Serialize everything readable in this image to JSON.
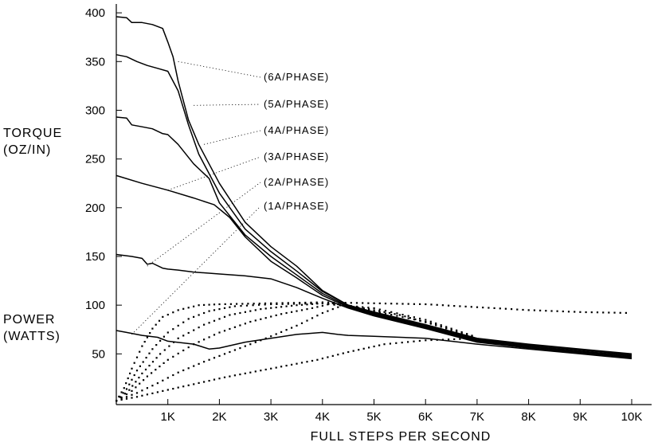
{
  "chart_data": {
    "type": "line",
    "ylabel_lines": [
      "TORQUE",
      "(OZ/IN)"
    ],
    "ylabel2_lines": [
      "POWER",
      "(WATTS)"
    ],
    "xlabel": "FULL STEPS PER SECOND",
    "x_ticks": [
      {
        "value": 1000,
        "label": "1K"
      },
      {
        "value": 2000,
        "label": "2K"
      },
      {
        "value": 3000,
        "label": "3K"
      },
      {
        "value": 4000,
        "label": "4K"
      },
      {
        "value": 5000,
        "label": "5K"
      },
      {
        "value": 6000,
        "label": "6K"
      },
      {
        "value": 7000,
        "label": "7K"
      },
      {
        "value": 8000,
        "label": "8K"
      },
      {
        "value": 9000,
        "label": "9K"
      },
      {
        "value": 10000,
        "label": "10K"
      }
    ],
    "y_ticks": [
      {
        "value": 50,
        "label": "50"
      },
      {
        "value": 100,
        "label": "100"
      },
      {
        "value": 150,
        "label": "150"
      },
      {
        "value": 200,
        "label": "200"
      },
      {
        "value": 250,
        "label": "250"
      },
      {
        "value": 300,
        "label": "300"
      },
      {
        "value": 350,
        "label": "350"
      },
      {
        "value": 400,
        "label": "400"
      }
    ],
    "xlim": [
      0,
      10400
    ],
    "ylim": [
      0,
      410
    ],
    "grid": false,
    "torque_series": [
      {
        "name": "(6A/PHASE)",
        "points": [
          [
            0,
            396
          ],
          [
            200,
            395
          ],
          [
            300,
            390
          ],
          [
            500,
            390
          ],
          [
            700,
            388
          ],
          [
            900,
            384
          ],
          [
            1000,
            370
          ],
          [
            1100,
            355
          ],
          [
            1200,
            330
          ],
          [
            1400,
            290
          ],
          [
            1600,
            265
          ],
          [
            2000,
            225
          ],
          [
            2500,
            185
          ],
          [
            3000,
            160
          ],
          [
            3500,
            140
          ],
          [
            4000,
            115
          ],
          [
            4500,
            100
          ],
          [
            5000,
            93
          ],
          [
            6000,
            80
          ],
          [
            7000,
            66
          ],
          [
            8000,
            60
          ],
          [
            9000,
            55
          ],
          [
            10000,
            50
          ]
        ]
      },
      {
        "name": "(5A/PHASE)",
        "points": [
          [
            0,
            357
          ],
          [
            200,
            355
          ],
          [
            400,
            350
          ],
          [
            600,
            346
          ],
          [
            800,
            343
          ],
          [
            1000,
            340
          ],
          [
            1200,
            320
          ],
          [
            1400,
            285
          ],
          [
            1600,
            255
          ],
          [
            2000,
            215
          ],
          [
            2500,
            178
          ],
          [
            3000,
            155
          ],
          [
            3500,
            135
          ],
          [
            4000,
            114
          ],
          [
            4500,
            100
          ],
          [
            5000,
            92
          ],
          [
            6000,
            79
          ],
          [
            7000,
            65
          ],
          [
            8000,
            59
          ],
          [
            9000,
            54
          ],
          [
            10000,
            49
          ]
        ]
      },
      {
        "name": "(4A/PHASE)",
        "points": [
          [
            0,
            293
          ],
          [
            200,
            292
          ],
          [
            300,
            285
          ],
          [
            500,
            283
          ],
          [
            700,
            281
          ],
          [
            900,
            276
          ],
          [
            1000,
            275
          ],
          [
            1200,
            265
          ],
          [
            1500,
            245
          ],
          [
            1800,
            230
          ],
          [
            2000,
            205
          ],
          [
            2500,
            172
          ],
          [
            3000,
            150
          ],
          [
            3500,
            131
          ],
          [
            4000,
            112
          ],
          [
            4500,
            99
          ],
          [
            5000,
            91
          ],
          [
            6000,
            78
          ],
          [
            7000,
            64
          ],
          [
            8000,
            58
          ],
          [
            9000,
            53
          ],
          [
            10000,
            48
          ]
        ]
      },
      {
        "name": "(3A/PHASE)",
        "points": [
          [
            0,
            233
          ],
          [
            500,
            225
          ],
          [
            1000,
            218
          ],
          [
            1500,
            210
          ],
          [
            1900,
            203
          ],
          [
            2200,
            190
          ],
          [
            2500,
            170
          ],
          [
            3000,
            145
          ],
          [
            3500,
            128
          ],
          [
            4000,
            110
          ],
          [
            4500,
            98
          ],
          [
            5000,
            90
          ],
          [
            6000,
            77
          ],
          [
            7000,
            63
          ],
          [
            8000,
            57
          ],
          [
            9000,
            52
          ],
          [
            10000,
            47
          ]
        ]
      },
      {
        "name": "(2A/PHASE)",
        "points": [
          [
            0,
            152
          ],
          [
            300,
            150
          ],
          [
            500,
            148
          ],
          [
            600,
            142
          ],
          [
            700,
            143
          ],
          [
            900,
            138
          ],
          [
            1000,
            137
          ],
          [
            1200,
            136
          ],
          [
            1500,
            134
          ],
          [
            2000,
            132
          ],
          [
            2500,
            130
          ],
          [
            3000,
            127
          ],
          [
            3500,
            118
          ],
          [
            4000,
            107
          ],
          [
            4500,
            97
          ],
          [
            5000,
            89
          ],
          [
            6000,
            76
          ],
          [
            7000,
            62
          ],
          [
            8000,
            56
          ],
          [
            9000,
            51
          ],
          [
            10000,
            46
          ]
        ]
      },
      {
        "name": "(1A/PHASE)",
        "points": [
          [
            0,
            74
          ],
          [
            200,
            72
          ],
          [
            500,
            69
          ],
          [
            800,
            67
          ],
          [
            1000,
            63
          ],
          [
            1500,
            60
          ],
          [
            1800,
            55
          ],
          [
            2000,
            56
          ],
          [
            2500,
            62
          ],
          [
            3000,
            66
          ],
          [
            3500,
            70
          ],
          [
            4000,
            72
          ],
          [
            4300,
            70
          ],
          [
            4500,
            69
          ],
          [
            5000,
            68
          ],
          [
            6000,
            66
          ],
          [
            7000,
            60
          ],
          [
            8000,
            55
          ],
          [
            9000,
            50
          ],
          [
            10000,
            45
          ]
        ]
      }
    ],
    "power_series": [
      {
        "name": "(6A/PHASE)",
        "points": [
          [
            0,
            2
          ],
          [
            150,
            15
          ],
          [
            300,
            35
          ],
          [
            500,
            58
          ],
          [
            700,
            76
          ],
          [
            900,
            88
          ],
          [
            1200,
            95
          ],
          [
            1600,
            100
          ],
          [
            2000,
            101
          ],
          [
            3000,
            102
          ],
          [
            4000,
            103
          ],
          [
            5000,
            102
          ],
          [
            6000,
            101
          ],
          [
            7000,
            98
          ],
          [
            8000,
            95
          ],
          [
            9000,
            93
          ],
          [
            10000,
            92
          ]
        ]
      },
      {
        "name": "(5A/PHASE)",
        "points": [
          [
            0,
            2
          ],
          [
            200,
            14
          ],
          [
            400,
            33
          ],
          [
            700,
            55
          ],
          [
            1000,
            72
          ],
          [
            1400,
            86
          ],
          [
            1800,
            94
          ],
          [
            2300,
            99
          ],
          [
            3000,
            101
          ],
          [
            4000,
            102
          ],
          [
            5000,
            97
          ],
          [
            6000,
            85
          ],
          [
            7000,
            67
          ]
        ]
      },
      {
        "name": "(4A/PHASE)",
        "points": [
          [
            0,
            2
          ],
          [
            250,
            13
          ],
          [
            500,
            30
          ],
          [
            850,
            50
          ],
          [
            1200,
            66
          ],
          [
            1700,
            80
          ],
          [
            2200,
            90
          ],
          [
            2800,
            96
          ],
          [
            3500,
            100
          ],
          [
            4000,
            102
          ],
          [
            4800,
            97
          ],
          [
            5500,
            90
          ],
          [
            6500,
            75
          ],
          [
            7000,
            67
          ]
        ]
      },
      {
        "name": "(3A/PHASE)",
        "points": [
          [
            0,
            2
          ],
          [
            300,
            12
          ],
          [
            600,
            27
          ],
          [
            1000,
            44
          ],
          [
            1500,
            60
          ],
          [
            2000,
            72
          ],
          [
            2600,
            83
          ],
          [
            3200,
            91
          ],
          [
            3800,
            97
          ],
          [
            4200,
            102
          ],
          [
            5000,
            94
          ],
          [
            6000,
            83
          ],
          [
            7000,
            66
          ]
        ]
      },
      {
        "name": "(2A/PHASE)",
        "points": [
          [
            0,
            2
          ],
          [
            400,
            10
          ],
          [
            800,
            20
          ],
          [
            1200,
            31
          ],
          [
            1700,
            42
          ],
          [
            2300,
            54
          ],
          [
            2900,
            66
          ],
          [
            3500,
            79
          ],
          [
            4000,
            92
          ],
          [
            4400,
            100
          ],
          [
            5000,
            92
          ],
          [
            6000,
            78
          ],
          [
            7000,
            64
          ]
        ]
      },
      {
        "name": "(1A/PHASE)",
        "points": [
          [
            0,
            2
          ],
          [
            400,
            6
          ],
          [
            900,
            12
          ],
          [
            1500,
            19
          ],
          [
            2100,
            26
          ],
          [
            2700,
            32
          ],
          [
            3300,
            38
          ],
          [
            3900,
            44
          ],
          [
            4500,
            52
          ],
          [
            5200,
            60
          ],
          [
            6000,
            64
          ],
          [
            7000,
            66
          ]
        ]
      }
    ]
  }
}
